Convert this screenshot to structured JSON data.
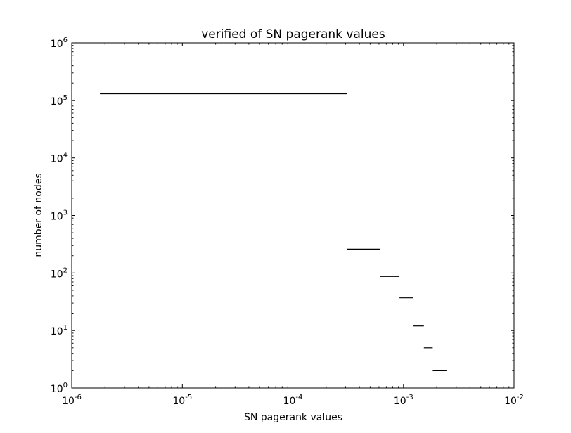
{
  "chart_data": {
    "type": "step",
    "title": "verified of SN pagerank values",
    "xlabel": "SN pagerank values",
    "ylabel": "number of nodes",
    "xscale": "log",
    "yscale": "log",
    "xlim": [
      1e-06,
      0.01
    ],
    "ylim": [
      1,
      1000000
    ],
    "x_ticks": [
      {
        "value": 1e-06,
        "base": "10",
        "exp": "-6"
      },
      {
        "value": 1e-05,
        "base": "10",
        "exp": "-5"
      },
      {
        "value": 0.0001,
        "base": "10",
        "exp": "-4"
      },
      {
        "value": 0.001,
        "base": "10",
        "exp": "-3"
      },
      {
        "value": 0.01,
        "base": "10",
        "exp": "-2"
      }
    ],
    "y_ticks": [
      {
        "value": 1,
        "base": "10",
        "exp": "0"
      },
      {
        "value": 10,
        "base": "10",
        "exp": "1"
      },
      {
        "value": 100,
        "base": "10",
        "exp": "2"
      },
      {
        "value": 1000,
        "base": "10",
        "exp": "3"
      },
      {
        "value": 10000,
        "base": "10",
        "exp": "4"
      },
      {
        "value": 100000,
        "base": "10",
        "exp": "5"
      },
      {
        "value": 1000000,
        "base": "10",
        "exp": "6"
      }
    ],
    "grid": false,
    "legend": "none",
    "line_color": "#000000",
    "segments": [
      {
        "x0": 1.8e-06,
        "x1": 0.00031,
        "y": 130000
      },
      {
        "x0": 0.00031,
        "x1": 0.00061,
        "y": 260
      },
      {
        "x0": 0.00061,
        "x1": 0.00092,
        "y": 87
      },
      {
        "x0": 0.00092,
        "x1": 0.00123,
        "y": 37
      },
      {
        "x0": 0.00123,
        "x1": 0.00153,
        "y": 12
      },
      {
        "x0": 0.00153,
        "x1": 0.00184,
        "y": 5
      },
      {
        "x0": 0.00184,
        "x1": 0.00245,
        "y": 2
      }
    ]
  }
}
